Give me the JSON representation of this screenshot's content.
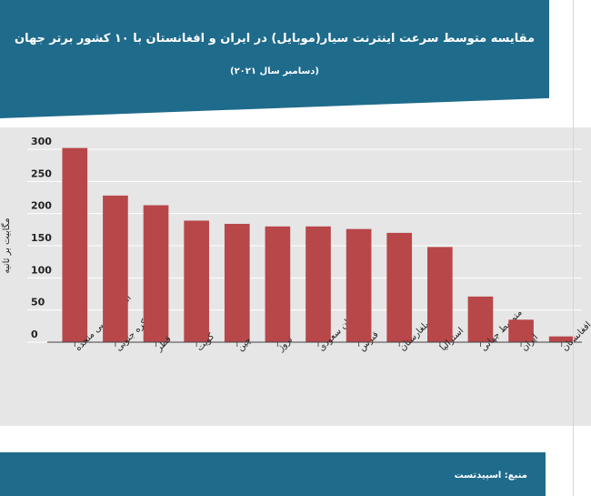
{
  "header": {
    "title": "مقایسه متوسط سرعت اینترنت سیار(موبایل) در ایران و افغانستان با ۱۰ کشور برتر جهان",
    "subtitle": "(دسامبر سال ۲۰۲۱)"
  },
  "footer": {
    "source": "منبع: اسپیدتست"
  },
  "colors": {
    "header_bg": "#1f6b8c",
    "bar": "#b8474a",
    "chart_bg": "#e6e6e6"
  },
  "chart_data": {
    "type": "bar",
    "title": "مقایسه متوسط سرعت اینترنت سیار(موبایل) در ایران و افغانستان با ۱۰ کشور برتر جهان",
    "subtitle": "(دسامبر سال ۲۰۲۱)",
    "xlabel": "",
    "ylabel": "مگابیت بر ثانیه",
    "ylim": [
      0,
      300
    ],
    "yticks": [
      0,
      50,
      100,
      150,
      200,
      250,
      300
    ],
    "grid": true,
    "categories": [
      "امارات عربی متحده",
      "کره جنوبی",
      "قطر",
      "کویت",
      "چین",
      "نروژ",
      "عربستان سعودی",
      "قبرس",
      "بلغارستان",
      "استرالیا",
      "متوسط جهانی",
      "ایران",
      "افغانستان"
    ],
    "values": [
      302,
      228,
      213,
      189,
      184,
      180,
      180,
      176,
      170,
      148,
      71,
      35,
      9
    ]
  }
}
